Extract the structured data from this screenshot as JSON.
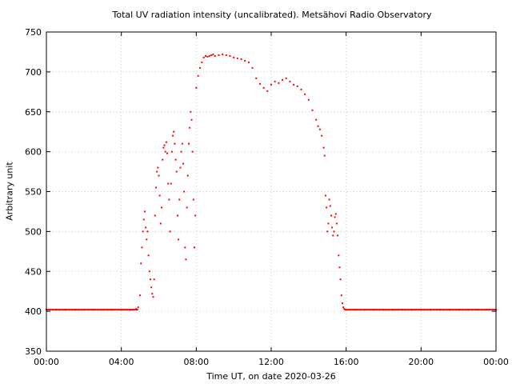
{
  "chart_data": {
    "type": "scatter",
    "title": "Total UV radiation intensity (uncalibrated). Metsähovi Radio Observatory",
    "xlabel": "Time UT, on date 2020-03-26",
    "ylabel": "Arbitrary unit",
    "xlim": [
      "00:00",
      "24:00"
    ],
    "ylim": [
      350,
      750
    ],
    "x_ticks": [
      "00:00",
      "04:00",
      "08:00",
      "12:00",
      "16:00",
      "20:00",
      "00:00"
    ],
    "y_ticks": [
      350,
      400,
      450,
      500,
      550,
      600,
      650,
      700,
      750
    ],
    "grid": true,
    "marker_color": "#ff0000",
    "series": [
      {
        "x_unit": "hours UT",
        "points": [
          [
            0.0,
            402
          ],
          [
            0.5,
            402
          ],
          [
            1.0,
            402
          ],
          [
            1.5,
            402
          ],
          [
            2.0,
            402
          ],
          [
            2.5,
            402
          ],
          [
            3.0,
            402
          ],
          [
            3.5,
            402
          ],
          [
            4.0,
            402
          ],
          [
            4.5,
            402
          ],
          [
            4.8,
            403
          ],
          [
            4.9,
            405
          ],
          [
            5.0,
            420
          ],
          [
            5.05,
            460
          ],
          [
            5.1,
            480
          ],
          [
            5.15,
            500
          ],
          [
            5.2,
            515
          ],
          [
            5.25,
            525
          ],
          [
            5.3,
            505
          ],
          [
            5.35,
            490
          ],
          [
            5.4,
            500
          ],
          [
            5.45,
            470
          ],
          [
            5.5,
            450
          ],
          [
            5.55,
            440
          ],
          [
            5.6,
            430
          ],
          [
            5.65,
            422
          ],
          [
            5.7,
            418
          ],
          [
            5.75,
            440
          ],
          [
            5.8,
            520
          ],
          [
            5.85,
            555
          ],
          [
            5.9,
            575
          ],
          [
            5.95,
            580
          ],
          [
            6.0,
            570
          ],
          [
            6.05,
            545
          ],
          [
            6.1,
            510
          ],
          [
            6.15,
            530
          ],
          [
            6.2,
            590
          ],
          [
            6.25,
            605
          ],
          [
            6.3,
            608
          ],
          [
            6.35,
            600
          ],
          [
            6.4,
            612
          ],
          [
            6.45,
            598
          ],
          [
            6.5,
            560
          ],
          [
            6.55,
            540
          ],
          [
            6.6,
            500
          ],
          [
            6.65,
            560
          ],
          [
            6.7,
            600
          ],
          [
            6.75,
            620
          ],
          [
            6.8,
            625
          ],
          [
            6.85,
            610
          ],
          [
            6.9,
            590
          ],
          [
            6.95,
            575
          ],
          [
            7.0,
            520
          ],
          [
            7.05,
            490
          ],
          [
            7.1,
            540
          ],
          [
            7.15,
            580
          ],
          [
            7.2,
            600
          ],
          [
            7.25,
            610
          ],
          [
            7.3,
            585
          ],
          [
            7.35,
            550
          ],
          [
            7.4,
            480
          ],
          [
            7.45,
            465
          ],
          [
            7.5,
            530
          ],
          [
            7.55,
            570
          ],
          [
            7.6,
            610
          ],
          [
            7.65,
            630
          ],
          [
            7.7,
            650
          ],
          [
            7.75,
            640
          ],
          [
            7.8,
            600
          ],
          [
            7.85,
            540
          ],
          [
            7.9,
            480
          ],
          [
            7.95,
            520
          ],
          [
            8.0,
            680
          ],
          [
            8.1,
            695
          ],
          [
            8.2,
            705
          ],
          [
            8.3,
            712
          ],
          [
            8.4,
            718
          ],
          [
            8.5,
            720
          ],
          [
            8.6,
            719
          ],
          [
            8.7,
            720
          ],
          [
            8.8,
            721
          ],
          [
            8.9,
            722
          ],
          [
            9.0,
            720
          ],
          [
            9.2,
            721
          ],
          [
            9.4,
            722
          ],
          [
            9.6,
            721
          ],
          [
            9.8,
            720
          ],
          [
            10.0,
            718
          ],
          [
            10.2,
            717
          ],
          [
            10.4,
            716
          ],
          [
            10.6,
            714
          ],
          [
            10.8,
            712
          ],
          [
            11.0,
            705
          ],
          [
            11.2,
            692
          ],
          [
            11.4,
            685
          ],
          [
            11.6,
            680
          ],
          [
            11.8,
            676
          ],
          [
            12.0,
            684
          ],
          [
            12.2,
            688
          ],
          [
            12.4,
            686
          ],
          [
            12.6,
            690
          ],
          [
            12.8,
            692
          ],
          [
            13.0,
            688
          ],
          [
            13.2,
            684
          ],
          [
            13.4,
            682
          ],
          [
            13.6,
            678
          ],
          [
            13.8,
            672
          ],
          [
            14.0,
            665
          ],
          [
            14.2,
            652
          ],
          [
            14.4,
            640
          ],
          [
            14.5,
            632
          ],
          [
            14.6,
            628
          ],
          [
            14.7,
            620
          ],
          [
            14.8,
            605
          ],
          [
            14.85,
            595
          ],
          [
            14.9,
            545
          ],
          [
            14.95,
            530
          ],
          [
            15.0,
            500
          ],
          [
            15.05,
            510
          ],
          [
            15.1,
            540
          ],
          [
            15.15,
            532
          ],
          [
            15.2,
            520
          ],
          [
            15.25,
            505
          ],
          [
            15.3,
            495
          ],
          [
            15.35,
            500
          ],
          [
            15.4,
            518
          ],
          [
            15.45,
            522
          ],
          [
            15.5,
            510
          ],
          [
            15.55,
            495
          ],
          [
            15.6,
            470
          ],
          [
            15.65,
            455
          ],
          [
            15.7,
            440
          ],
          [
            15.75,
            420
          ],
          [
            15.8,
            410
          ],
          [
            15.85,
            405
          ],
          [
            15.9,
            403
          ],
          [
            16.0,
            402
          ],
          [
            16.5,
            402
          ],
          [
            17.0,
            402
          ],
          [
            17.5,
            402
          ],
          [
            18.0,
            402
          ],
          [
            18.5,
            402
          ],
          [
            19.0,
            402
          ],
          [
            19.5,
            402
          ],
          [
            20.0,
            402
          ],
          [
            20.5,
            402
          ],
          [
            21.0,
            402
          ],
          [
            21.5,
            402
          ],
          [
            22.0,
            402
          ],
          [
            22.5,
            402
          ],
          [
            23.0,
            402
          ],
          [
            23.5,
            402
          ],
          [
            24.0,
            402
          ]
        ]
      }
    ]
  }
}
